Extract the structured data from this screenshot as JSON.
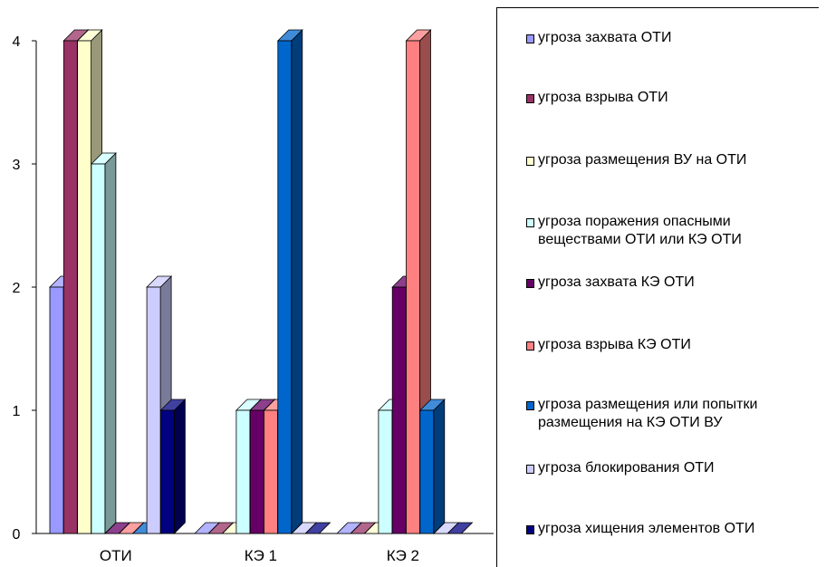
{
  "chart_data": {
    "type": "bar",
    "categories": [
      "ОТИ",
      "КЭ 1",
      "КЭ 2"
    ],
    "ylim": [
      0,
      4
    ],
    "yticks": [
      0,
      1,
      2,
      3,
      4
    ],
    "series": [
      {
        "name": "угроза захвата  ОТИ",
        "color": "#9999ff",
        "values": [
          2,
          0,
          0
        ]
      },
      {
        "name": "угроза взрыва ОТИ",
        "color": "#993366",
        "values": [
          4,
          0,
          0
        ]
      },
      {
        "name": "угроза размещения ВУ на ОТИ",
        "color": "#ffffcc",
        "values": [
          4,
          0,
          0
        ]
      },
      {
        "name": "угроза поражения опасными веществами ОТИ или КЭ ОТИ",
        "color": "#ccffff",
        "values": [
          3,
          1,
          1
        ]
      },
      {
        "name": "угроза захвата КЭ ОТИ",
        "color": "#660066",
        "values": [
          0,
          1,
          2
        ]
      },
      {
        "name": "угроза взрыва КЭ ОТИ",
        "color": "#ff8080",
        "values": [
          0,
          1,
          4
        ]
      },
      {
        "name": "угроза размещения или попытки размещения на КЭ ОТИ ВУ",
        "color": "#0066cc",
        "values": [
          0,
          4,
          1
        ]
      },
      {
        "name": "угроза блокирования ОТИ",
        "color": "#ccccff",
        "values": [
          2,
          0,
          0
        ]
      },
      {
        "name": "угроза хищения элементов ОТИ",
        "color": "#000080",
        "values": [
          1,
          0,
          0
        ]
      }
    ]
  },
  "legend": {
    "items": [
      {
        "label": "угроза захвата  ОТИ",
        "color": "#9999ff"
      },
      {
        "label": "угроза взрыва ОТИ",
        "color": "#993366"
      },
      {
        "label": "угроза размещения ВУ на ОТИ",
        "color": "#ffffcc"
      },
      {
        "label": "угроза поражения опасными\nвеществами ОТИ или КЭ ОТИ",
        "color": "#ccffff"
      },
      {
        "label": "угроза захвата КЭ ОТИ",
        "color": "#660066"
      },
      {
        "label": "угроза взрыва КЭ ОТИ",
        "color": "#ff8080"
      },
      {
        "label": "угроза размещения или попытки\nразмещения на КЭ ОТИ ВУ",
        "color": "#0066cc"
      },
      {
        "label": "угроза блокирования ОТИ",
        "color": "#ccccff"
      },
      {
        "label": "угроза хищения элементов ОТИ",
        "color": "#000080"
      }
    ]
  }
}
